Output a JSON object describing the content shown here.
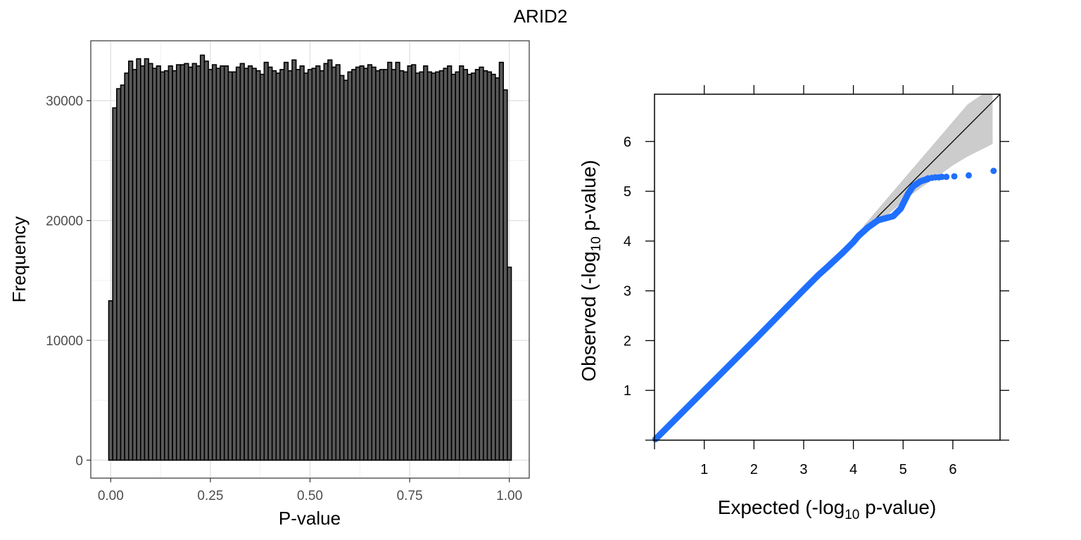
{
  "figure": {
    "title": "ARID2"
  },
  "chart_data": [
    {
      "type": "bar",
      "kind": "histogram",
      "xlabel": "P-value",
      "ylabel": "Frequency",
      "xlim": [
        -0.05,
        1.05
      ],
      "ylim": [
        -1500,
        35000
      ],
      "x_ticks": [
        0.0,
        0.25,
        0.5,
        0.75,
        1.0
      ],
      "x_tick_labels": [
        "0.00",
        "0.25",
        "0.50",
        "0.75",
        "1.00"
      ],
      "y_ticks": [
        0,
        10000,
        20000,
        30000
      ],
      "y_tick_labels": [
        "0",
        "10000",
        "20000",
        "30000"
      ],
      "bin_start": -0.005,
      "bin_width": 0.01,
      "values": [
        13300,
        29400,
        31000,
        31300,
        32300,
        33300,
        32600,
        33500,
        32900,
        33500,
        33100,
        32700,
        32900,
        32400,
        32500,
        32900,
        32500,
        33000,
        33000,
        33100,
        32800,
        33100,
        32900,
        33800,
        33300,
        32600,
        33000,
        32700,
        32900,
        32900,
        32400,
        32400,
        32800,
        33100,
        32700,
        32900,
        32700,
        32500,
        32200,
        33200,
        32800,
        32500,
        32300,
        32600,
        33200,
        32500,
        33400,
        32600,
        32900,
        32300,
        32600,
        32700,
        32900,
        32500,
        33100,
        33400,
        32800,
        33000,
        32100,
        31700,
        32400,
        32600,
        32800,
        32900,
        32700,
        33000,
        32800,
        32500,
        32600,
        32600,
        33200,
        32600,
        33200,
        32500,
        32400,
        32900,
        33000,
        32300,
        32400,
        32900,
        32400,
        32300,
        32400,
        32500,
        32700,
        32900,
        32200,
        32400,
        32900,
        32600,
        32200,
        32300,
        32600,
        32800,
        32500,
        32400,
        32200,
        31900,
        33200,
        30900,
        16100
      ]
    },
    {
      "type": "scatter",
      "kind": "qq",
      "xlabel_prefix": "Expected (-log",
      "xlabel_sub": "10",
      "xlabel_suffix": " p-value)",
      "ylabel_prefix": "Observed (-log",
      "ylabel_sub": "10",
      "ylabel_suffix": " p-value)",
      "xlim": [
        0,
        6.95
      ],
      "ylim": [
        0,
        6.95
      ],
      "x_ticks": [
        1,
        2,
        3,
        4,
        5,
        6
      ],
      "x_tick_labels": [
        "1",
        "2",
        "3",
        "4",
        "5",
        "6"
      ],
      "y_ticks": [
        1,
        2,
        3,
        4,
        5,
        6
      ],
      "y_tick_labels": [
        "1",
        "2",
        "3",
        "4",
        "5",
        "6"
      ],
      "point_color": "#1f6fff",
      "band_color": "#cccccc",
      "diagonal": {
        "from": [
          0,
          0
        ],
        "to": [
          6.95,
          6.95
        ]
      },
      "band_upper": [
        [
          4.2,
          4.3
        ],
        [
          4.5,
          4.65
        ],
        [
          4.8,
          5.0
        ],
        [
          5.1,
          5.35
        ],
        [
          5.4,
          5.7
        ],
        [
          5.7,
          6.05
        ],
        [
          6.0,
          6.4
        ],
        [
          6.3,
          6.75
        ],
        [
          6.6,
          6.95
        ],
        [
          6.8,
          6.95
        ]
      ],
      "band_lower": [
        [
          6.8,
          5.95
        ],
        [
          6.6,
          5.85
        ],
        [
          6.3,
          5.7
        ],
        [
          6.0,
          5.52
        ],
        [
          5.7,
          5.3
        ],
        [
          5.4,
          5.1
        ],
        [
          5.1,
          4.88
        ],
        [
          4.8,
          4.62
        ],
        [
          4.5,
          4.38
        ],
        [
          4.2,
          4.15
        ]
      ],
      "observed_curve": [
        [
          0.02,
          0.02
        ],
        [
          1.0,
          1.0
        ],
        [
          2.0,
          2.0
        ],
        [
          3.0,
          3.02
        ],
        [
          3.3,
          3.32
        ],
        [
          3.5,
          3.5
        ],
        [
          3.8,
          3.78
        ],
        [
          4.0,
          3.98
        ],
        [
          4.1,
          4.1
        ],
        [
          4.3,
          4.28
        ],
        [
          4.5,
          4.42
        ],
        [
          4.8,
          4.5
        ],
        [
          4.95,
          4.65
        ],
        [
          5.1,
          4.95
        ],
        [
          5.2,
          5.1
        ],
        [
          5.35,
          5.2
        ],
        [
          5.5,
          5.25
        ]
      ],
      "outlier_points": [
        [
          5.5,
          5.26
        ],
        [
          5.58,
          5.27
        ],
        [
          5.65,
          5.28
        ],
        [
          5.72,
          5.28
        ],
        [
          5.78,
          5.29
        ],
        [
          5.87,
          5.29
        ],
        [
          6.03,
          5.3
        ],
        [
          6.32,
          5.32
        ],
        [
          6.82,
          5.41
        ]
      ]
    }
  ]
}
